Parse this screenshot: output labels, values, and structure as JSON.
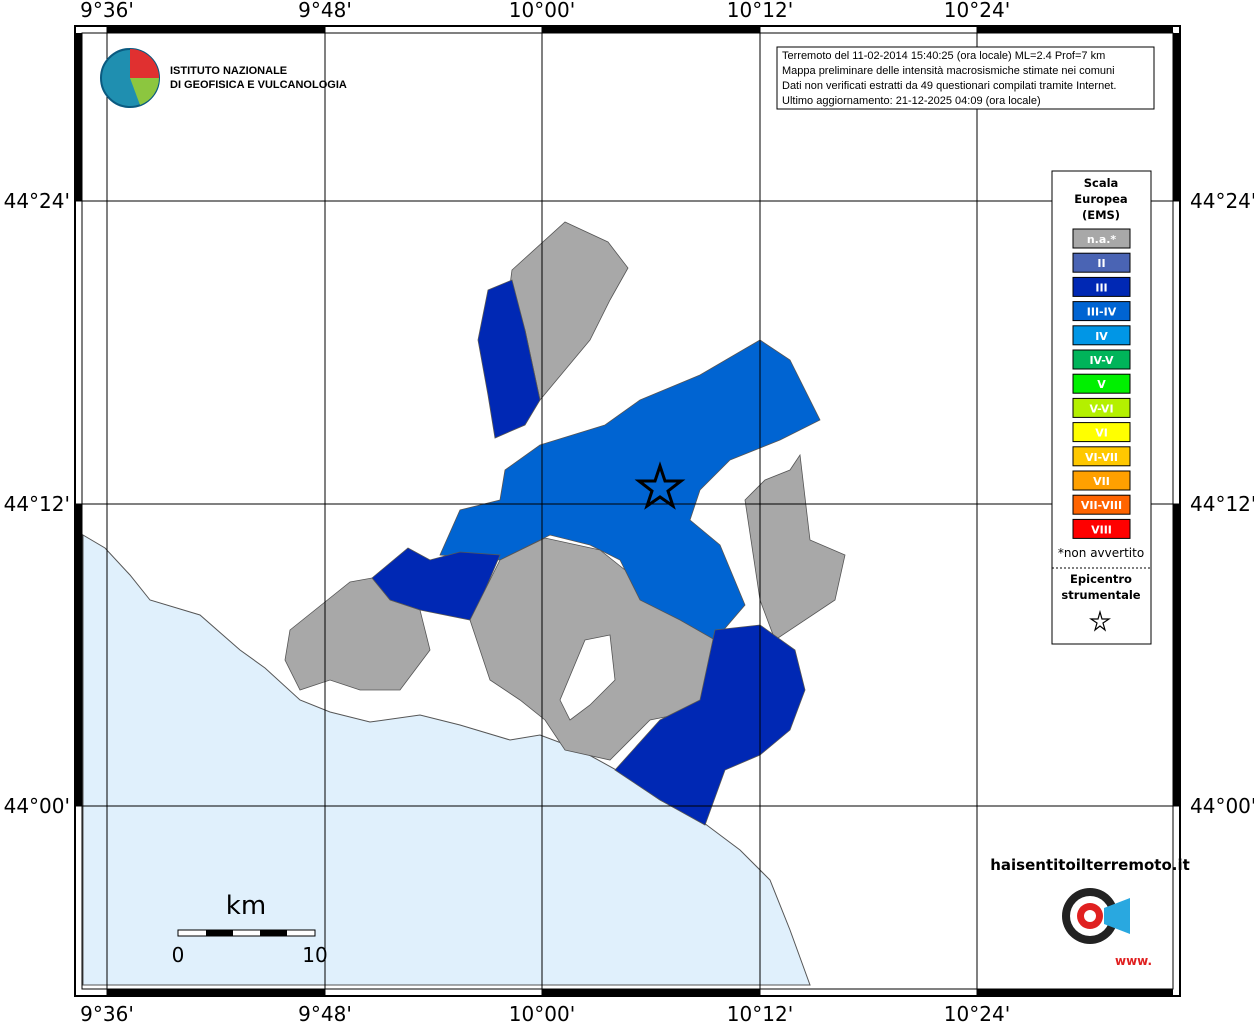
{
  "graticule": {
    "lon_labels": [
      "9°36'",
      "9°48'",
      "10°00'",
      "10°12'",
      "10°24'"
    ],
    "lat_labels": [
      "44°24'",
      "44°12'",
      "44°00'"
    ]
  },
  "info": [
    "Terremoto del 11-02-2014 15:40:25 (ora locale) ML=2.4 Prof=7 km",
    "Mappa preliminare delle intensità macrosismiche stimate nei comuni",
    "Dati non verificati estratti da 49 questionari compilati tramite Internet.",
    "Ultimo aggiornamento: 21-12-2025 04:09 (ora locale)"
  ],
  "logo": [
    "ISTITUTO NAZIONALE",
    "DI GEOFISICA E VULCANOLOGIA"
  ],
  "legend": {
    "title": [
      "Scala",
      "Europea",
      "(EMS)"
    ],
    "items": [
      {
        "label": "n.a.*",
        "color": "#a8a8a8"
      },
      {
        "label": "II",
        "color": "#4a64b4"
      },
      {
        "label": "III",
        "color": "#0028b4"
      },
      {
        "label": "III-IV",
        "color": "#0064d2"
      },
      {
        "label": "IV",
        "color": "#0096e6"
      },
      {
        "label": "IV-V",
        "color": "#00b45a"
      },
      {
        "label": "V",
        "color": "#00f000"
      },
      {
        "label": "V-VI",
        "color": "#b4f000"
      },
      {
        "label": "VI",
        "color": "#ffff00"
      },
      {
        "label": "VI-VII",
        "color": "#ffc800"
      },
      {
        "label": "VII",
        "color": "#ffa000"
      },
      {
        "label": "VII-VIII",
        "color": "#ff6400"
      },
      {
        "label": "VIII",
        "color": "#ff0000"
      }
    ],
    "note": "*non avvertito",
    "epicenter": [
      "Epicentro",
      "strumentale"
    ]
  },
  "scale_bar": {
    "unit": "km",
    "labels": [
      "0",
      "10"
    ]
  },
  "watermark": [
    "haisentitoilterremoto.it",
    "www."
  ]
}
